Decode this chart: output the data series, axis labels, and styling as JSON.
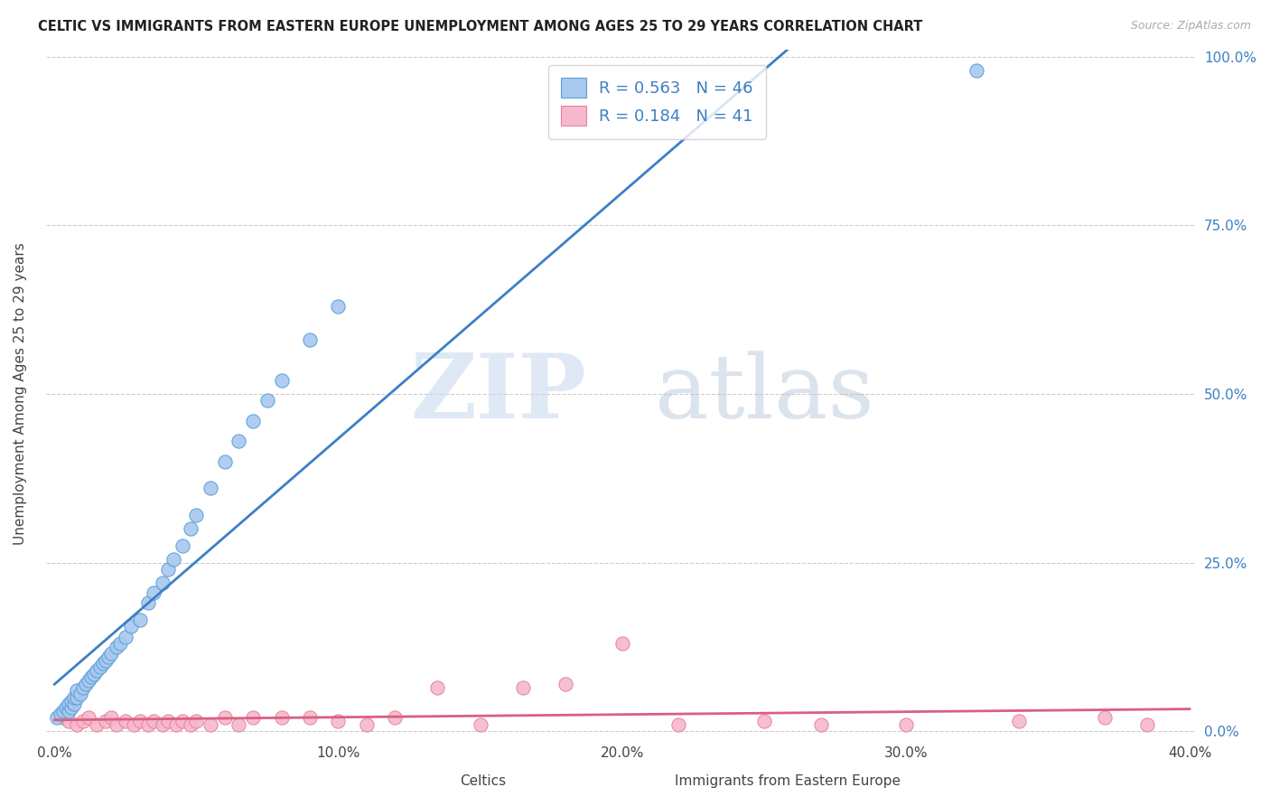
{
  "title": "CELTIC VS IMMIGRANTS FROM EASTERN EUROPE UNEMPLOYMENT AMONG AGES 25 TO 29 YEARS CORRELATION CHART",
  "source": "Source: ZipAtlas.com",
  "ylabel": "Unemployment Among Ages 25 to 29 years",
  "xlim": [
    -0.003,
    0.402
  ],
  "ylim": [
    -0.01,
    1.01
  ],
  "xticks": [
    0.0,
    0.1,
    0.2,
    0.3,
    0.4
  ],
  "xticklabels": [
    "0.0%",
    "10.0%",
    "20.0%",
    "30.0%",
    "40.0%"
  ],
  "yticks": [
    0.0,
    0.25,
    0.5,
    0.75,
    1.0
  ],
  "yticklabels": [
    "0.0%",
    "25.0%",
    "50.0%",
    "75.0%",
    "100.0%"
  ],
  "celtics_color": "#a8c8f0",
  "immigrants_color": "#f5b8cc",
  "celtics_edge_color": "#5a9fd4",
  "immigrants_edge_color": "#e8829a",
  "celtics_line_color": "#3d7fc4",
  "immigrants_line_color": "#d96080",
  "celtics_R": 0.563,
  "celtics_N": 46,
  "immigrants_R": 0.184,
  "immigrants_N": 41,
  "watermark_zip": "ZIP",
  "watermark_atlas": "atlas",
  "background_color": "#ffffff",
  "grid_color": "#cccccc",
  "celtics_x": [
    0.001,
    0.002,
    0.003,
    0.004,
    0.005,
    0.005,
    0.006,
    0.006,
    0.007,
    0.007,
    0.008,
    0.008,
    0.009,
    0.01,
    0.011,
    0.012,
    0.013,
    0.014,
    0.015,
    0.016,
    0.017,
    0.018,
    0.019,
    0.02,
    0.022,
    0.023,
    0.025,
    0.027,
    0.03,
    0.033,
    0.035,
    0.038,
    0.04,
    0.042,
    0.045,
    0.048,
    0.05,
    0.055,
    0.06,
    0.065,
    0.07,
    0.075,
    0.08,
    0.09,
    0.1,
    0.325
  ],
  "celtics_y": [
    0.02,
    0.025,
    0.03,
    0.035,
    0.03,
    0.04,
    0.035,
    0.045,
    0.04,
    0.05,
    0.05,
    0.06,
    0.055,
    0.065,
    0.07,
    0.075,
    0.08,
    0.085,
    0.09,
    0.095,
    0.1,
    0.105,
    0.11,
    0.115,
    0.125,
    0.13,
    0.14,
    0.155,
    0.165,
    0.19,
    0.205,
    0.22,
    0.24,
    0.255,
    0.275,
    0.3,
    0.32,
    0.36,
    0.4,
    0.43,
    0.46,
    0.49,
    0.52,
    0.58,
    0.63,
    0.98
  ],
  "immigrants_x": [
    0.003,
    0.005,
    0.008,
    0.01,
    0.012,
    0.015,
    0.018,
    0.02,
    0.022,
    0.025,
    0.028,
    0.03,
    0.033,
    0.035,
    0.038,
    0.04,
    0.043,
    0.045,
    0.048,
    0.05,
    0.055,
    0.06,
    0.065,
    0.07,
    0.08,
    0.09,
    0.1,
    0.11,
    0.12,
    0.135,
    0.15,
    0.165,
    0.18,
    0.2,
    0.22,
    0.25,
    0.27,
    0.3,
    0.34,
    0.37,
    0.385
  ],
  "immigrants_y": [
    0.02,
    0.015,
    0.01,
    0.015,
    0.02,
    0.01,
    0.015,
    0.02,
    0.01,
    0.015,
    0.01,
    0.015,
    0.01,
    0.015,
    0.01,
    0.015,
    0.01,
    0.015,
    0.01,
    0.015,
    0.01,
    0.02,
    0.01,
    0.02,
    0.02,
    0.02,
    0.015,
    0.01,
    0.02,
    0.065,
    0.01,
    0.065,
    0.07,
    0.13,
    0.01,
    0.015,
    0.01,
    0.01,
    0.015,
    0.02,
    0.01
  ]
}
